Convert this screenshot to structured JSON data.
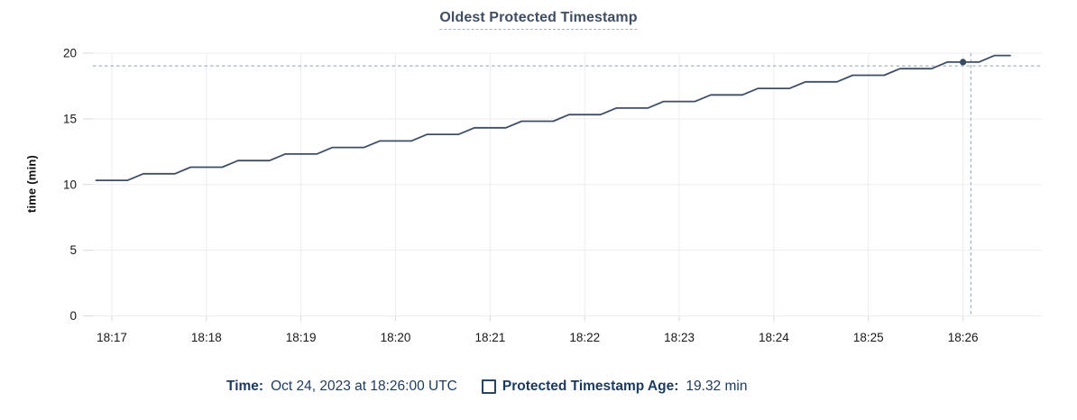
{
  "title": "Oldest Protected Timestamp",
  "legend": {
    "time_label": "Time:",
    "time_value": "Oct 24, 2023 at 18:26:00 UTC",
    "series_label": "Protected Timestamp Age:",
    "series_value": "19.32 min"
  },
  "colors": {
    "line": "#3e4e66",
    "hover_dot": "#3a4a61",
    "grid": "#ededf0",
    "tick_mark": "#d9d9de",
    "tick_label": "#17181c",
    "crosshair": "#9fb3c2",
    "title_text": "#3f4e63",
    "legend_text": "#1c3a5e"
  },
  "chart_data": {
    "type": "line",
    "title": "Oldest Protected Timestamp",
    "xlabel": "",
    "ylabel": "time (min)",
    "ylim": [
      0,
      20
    ],
    "y_ticks": [
      0,
      5,
      10,
      15,
      20
    ],
    "x_ticks": [
      "18:17",
      "18:18",
      "18:19",
      "18:20",
      "18:21",
      "18:22",
      "18:23",
      "18:24",
      "18:25",
      "18:26"
    ],
    "x_range": [
      "18:16:48",
      "18:26:50"
    ],
    "grid": true,
    "legend_position": "bottom",
    "sample_interval_sec": 10,
    "x_start": "18:16:50",
    "series": [
      {
        "name": "Protected Timestamp Age",
        "unit": "min",
        "values": [
          10.32,
          10.32,
          10.32,
          10.82,
          10.82,
          10.82,
          11.32,
          11.32,
          11.32,
          11.82,
          11.82,
          11.82,
          12.32,
          12.32,
          12.32,
          12.82,
          12.82,
          12.82,
          13.32,
          13.32,
          13.32,
          13.82,
          13.82,
          13.82,
          14.32,
          14.32,
          14.32,
          14.82,
          14.82,
          14.82,
          15.32,
          15.32,
          15.32,
          15.82,
          15.82,
          15.82,
          16.32,
          16.32,
          16.32,
          16.82,
          16.82,
          16.82,
          17.32,
          17.32,
          17.32,
          17.82,
          17.82,
          17.82,
          18.32,
          18.32,
          18.32,
          18.82,
          18.82,
          18.82,
          19.32,
          19.32,
          19.32,
          19.82,
          19.82
        ]
      }
    ],
    "hover_point": {
      "time": "18:26:00",
      "value": 19.32
    },
    "cursor": {
      "time": "18:26:05",
      "value": 19.03
    }
  }
}
